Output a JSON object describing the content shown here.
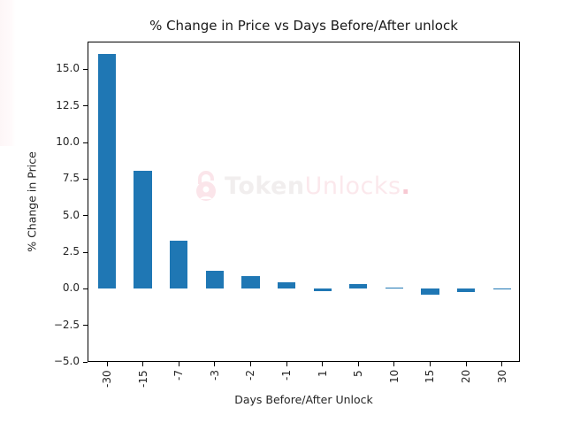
{
  "chart_data": {
    "type": "bar",
    "title": "% Change in Price vs Days Before/After unlock",
    "xlabel": "Days Before/After Unlock",
    "ylabel": "% Change in Price",
    "categories": [
      "-30",
      "-15",
      "-7",
      "-3",
      "-2",
      "-1",
      "1",
      "5",
      "10",
      "15",
      "20",
      "30"
    ],
    "values": [
      16.07,
      8.09,
      3.27,
      1.23,
      0.89,
      0.45,
      -0.17,
      0.35,
      0.1,
      -0.42,
      -0.24,
      -0.04
    ],
    "ylim": [
      -5.0,
      16.9
    ],
    "yticks": [
      "−5.0",
      "−2.5",
      "0.0",
      "2.5",
      "5.0",
      "7.5",
      "10.0",
      "12.5",
      "15.0"
    ],
    "ytick_values": [
      -5.0,
      -2.5,
      0.0,
      2.5,
      5.0,
      7.5,
      10.0,
      12.5,
      15.0
    ],
    "xtick_rotation": 90,
    "grid": false,
    "legend": null,
    "bar_color": "#1f77b4"
  },
  "watermark": {
    "brand_part1": "Token",
    "brand_part2": "Unlocks",
    "brand_dot": ".",
    "icon": "lock-icon"
  }
}
